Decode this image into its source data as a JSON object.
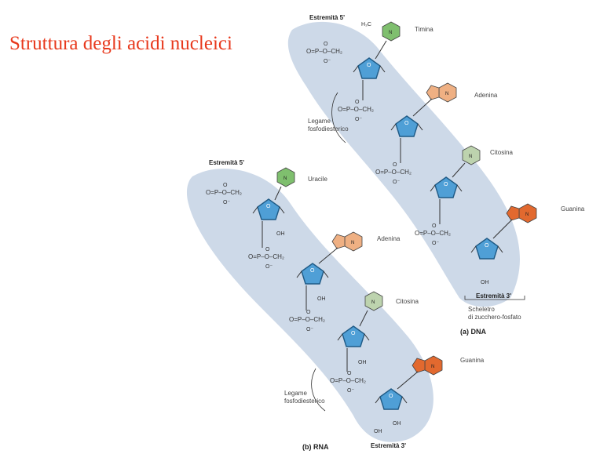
{
  "title": "Struttura degli acidi nucleici",
  "colors": {
    "title": "#e8391d",
    "backbone_band": "#cdd9e8",
    "sugar": "#4f9fd6",
    "thymine_uracil": "#7fbf6e",
    "adenine": "#efb083",
    "cytosine": "#bdd3ae",
    "guanine": "#e2692f"
  },
  "dna": {
    "caption": "(a) DNA",
    "end5": "Estremità 5'",
    "end3": "Estremità 3'",
    "bases": [
      "Timina",
      "Adenina",
      "Citosina",
      "Guanina"
    ],
    "bond_label": [
      "Legame",
      "fosfodiesterico"
    ],
    "backbone_label": [
      "Scheletro",
      "di zucchero-fosfato"
    ]
  },
  "rna": {
    "caption": "(b) RNA",
    "end5": "Estremità 5'",
    "end3": "Estremità 3'",
    "bases": [
      "Uracile",
      "Adenina",
      "Citosina",
      "Guanina"
    ],
    "bond_label": [
      "Legame",
      "fosfodiesterico"
    ]
  },
  "chem": {
    "phosphate": "O=P–O–CH2",
    "o_minus": "O⁻",
    "oh": "OH",
    "h": "H",
    "n": "N",
    "methyl": "H3C"
  }
}
